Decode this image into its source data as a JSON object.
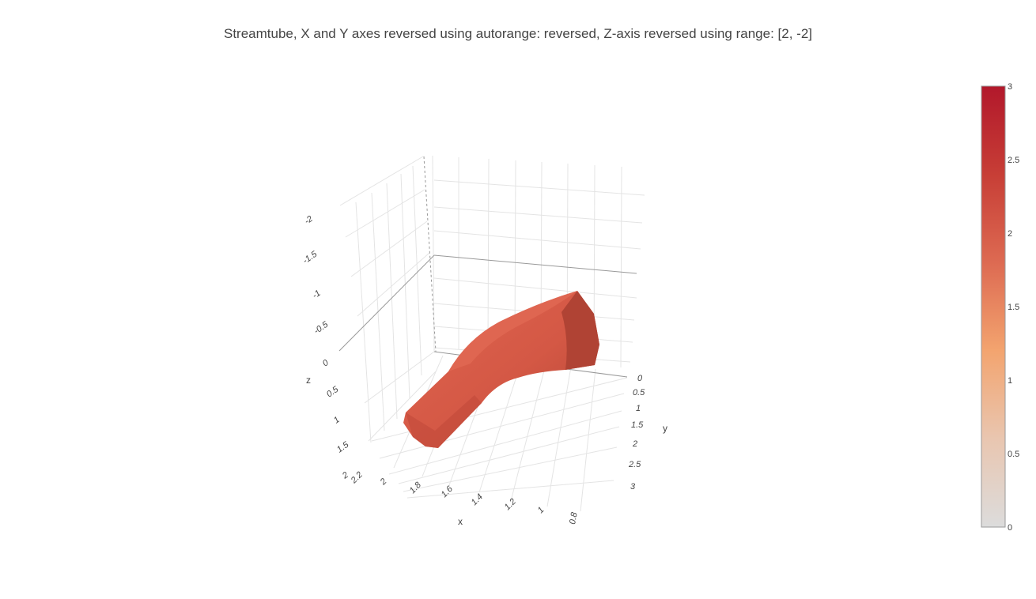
{
  "chart_data": {
    "type": "streamtube",
    "title": "Streamtube, X and Y axes reversed using autorange: reversed, Z-axis reversed using range: [2, -2]",
    "xaxis": {
      "title": "x",
      "autorange": "reversed",
      "tick_labels": [
        "2.2",
        "2",
        "1.8",
        "1.6",
        "1.4",
        "1.2",
        "1",
        "0.8"
      ]
    },
    "yaxis": {
      "title": "y",
      "autorange": "reversed",
      "tick_labels": [
        "0",
        "0.5",
        "1",
        "1.5",
        "2",
        "2.5",
        "3"
      ]
    },
    "zaxis": {
      "title": "z",
      "range": [
        2,
        -2
      ],
      "tick_labels": [
        "-2",
        "-1.5",
        "-1",
        "-0.5",
        "0",
        "0.5",
        "1",
        "1.5",
        "2"
      ]
    },
    "grid": true,
    "colorbar": {
      "min": 0,
      "max": 3,
      "tick_labels": [
        "3",
        "2.5",
        "2",
        "1.5",
        "1",
        "0.5",
        "0"
      ],
      "colorscale": [
        "#dcdcdc",
        "#e9b494",
        "#f3a46f",
        "#dd6a52",
        "#c73e36",
        "#b2182b"
      ]
    },
    "tube_color": "#d45845"
  }
}
